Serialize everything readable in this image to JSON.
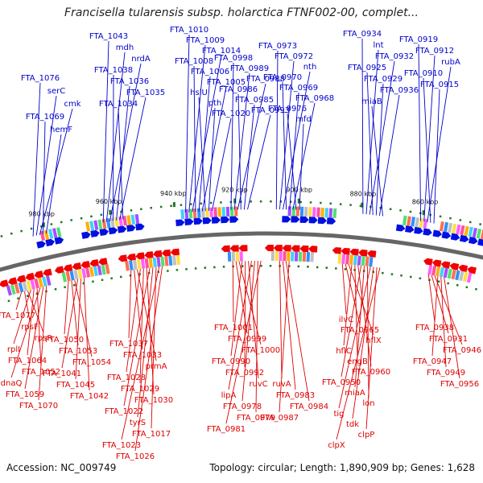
{
  "title": "Francisella tularensis subsp. holarctica FTNF002-00, complet...",
  "footer": {
    "accession": "Accession: NC_009749",
    "summary": "Topology: circular; Length: 1,890,909 bp; Genes: 1,628"
  },
  "colors": {
    "forward": "#0000cc",
    "reverse": "#dd0000",
    "backbone": "#666666",
    "ticks": "#227722"
  },
  "ruler": [
    "980 kbp",
    "960 kbp",
    "940 kbp",
    "920 kbp",
    "900 kbp",
    "880 kbp",
    "860 kbp"
  ],
  "top_labels": [
    "FTA_1043",
    "mdh",
    "nrdA",
    "FTA_1038",
    "FTA_1036",
    "FTA_1035",
    "FTA_1034",
    "FTA_1076",
    "serC",
    "cmk",
    "FTA_1069",
    "hemF",
    "FTA_1010",
    "FTA_1009",
    "FTA_1014",
    "FTA_1008",
    "FTA_1006",
    "FTA_1005",
    "hslU",
    "pth",
    "FTA_1020",
    "FTA_0998",
    "FTA_0989",
    "FTA_0988",
    "FTA_0986",
    "FTA_0985",
    "FTA_0993",
    "FTA_0973",
    "FTA_0972",
    "nth",
    "FTA_0970",
    "FTA_0969",
    "FTA_0968",
    "FTA_0976",
    "mfd",
    "FTA_0934",
    "lnt",
    "FTA_0932",
    "FTA_0925",
    "FTA_0929",
    "FTA_0936",
    "miaB",
    "FTA_0919",
    "FTA_0912",
    "rubA",
    "FTA_0910",
    "FTA_0915"
  ],
  "bottom_labels": [
    "FTA_1077",
    "rpsF",
    "rpsR",
    "rplI",
    "FTA_1064",
    "FTA_1052",
    "dnaQ",
    "FTA_1059",
    "FTA_1070",
    "FTA_1050",
    "FTA_1053",
    "FTA_1054",
    "FTA_1041",
    "FTA_1045",
    "FTA_1042",
    "FTA_1037",
    "FTA_1033",
    "prmA",
    "FTA_1028",
    "FTA_1029",
    "FTA_1030",
    "FTA_1022",
    "tyrS",
    "FTA_1017",
    "FTA_1023",
    "FTA_1026",
    "FTA_1001",
    "FTA_0999",
    "FTA_1000",
    "FTA_0990",
    "FTA_0992",
    "ruvC",
    "lipA",
    "FTA_0978",
    "FTA_0979",
    "FTA_0981",
    "ruvA",
    "FTA_0983",
    "FTA_0984",
    "FTA_0987",
    "ilvC",
    "FTA_0965",
    "hflX",
    "hflC",
    "engB",
    "FTA_0960",
    "FTA_0950",
    "miaA",
    "lon",
    "tig",
    "tdk",
    "clpP",
    "clpX",
    "FTA_0938",
    "FTA_0931",
    "FTA_0946",
    "FTA_0947",
    "FTA_0949",
    "FTA_0956"
  ]
}
